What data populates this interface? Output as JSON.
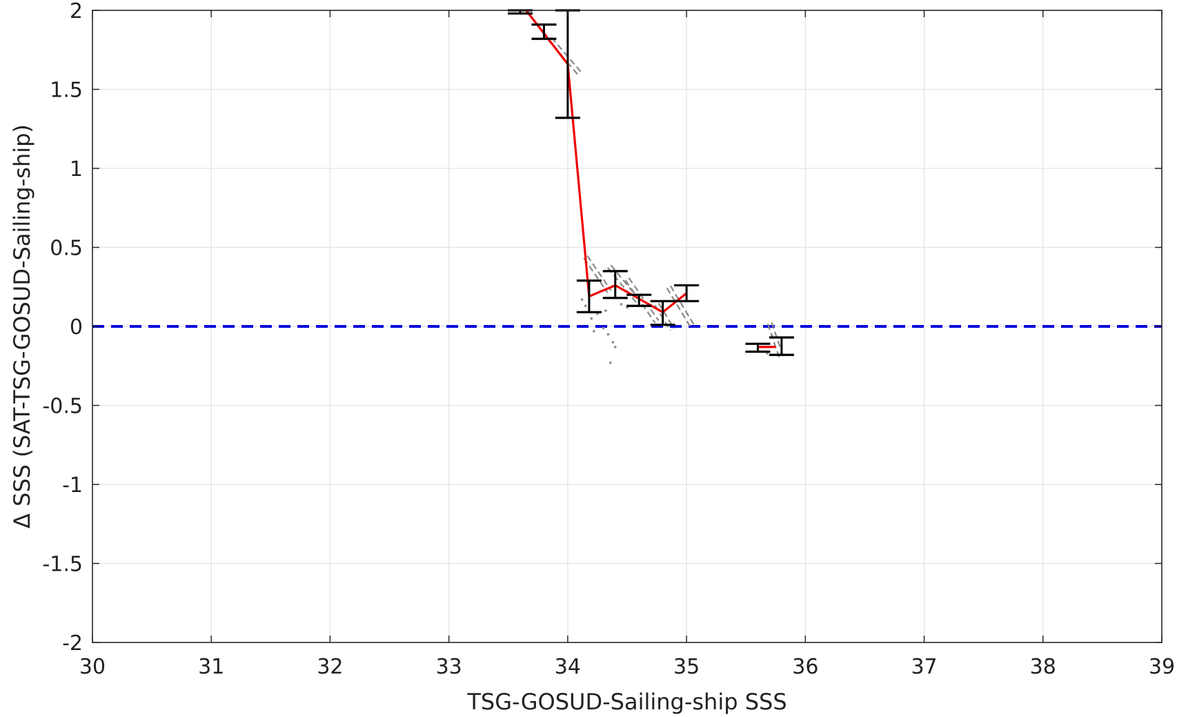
{
  "chart_data": {
    "type": "line",
    "title": "",
    "xlabel": "TSG-GOSUD-Sailing-ship SSS",
    "ylabel": "Δ SSS (SAT-TSG-GOSUD-Sailing-ship)",
    "xlim": [
      30,
      39
    ],
    "ylim": [
      -2,
      2
    ],
    "xticks": [
      "30",
      "31",
      "32",
      "33",
      "34",
      "35",
      "36",
      "37",
      "38",
      "39"
    ],
    "yticks": [
      "-2",
      "-1.5",
      "-1",
      "-0.5",
      "0",
      "0.5",
      "1",
      "1.5",
      "2"
    ],
    "grid": true,
    "reference_line": {
      "y": 0,
      "style": "dashed",
      "color": "#0000dd"
    },
    "series": [
      {
        "type": "line",
        "color": "#ee0000",
        "x": [
          33.65,
          34.0,
          34.18,
          34.4,
          34.8,
          35.0
        ],
        "y": [
          2.0,
          1.66,
          0.19,
          0.26,
          0.09,
          0.21
        ]
      },
      {
        "type": "line",
        "color": "#ee0000",
        "x": [
          35.6,
          35.75
        ],
        "y": [
          -0.13,
          -0.13
        ]
      }
    ],
    "error_bars": {
      "color": "#000000",
      "items": [
        {
          "x": 33.6,
          "low": 1.98,
          "high": 2.0
        },
        {
          "x": 33.8,
          "low": 1.82,
          "high": 1.91
        },
        {
          "x": 34.0,
          "low": 1.32,
          "high": 2.0
        },
        {
          "x": 34.18,
          "low": 0.09,
          "high": 0.29
        },
        {
          "x": 34.4,
          "low": 0.18,
          "high": 0.35
        },
        {
          "x": 34.6,
          "low": 0.13,
          "high": 0.2
        },
        {
          "x": 34.8,
          "low": 0.01,
          "high": 0.16
        },
        {
          "x": 35.0,
          "low": 0.16,
          "high": 0.26
        },
        {
          "x": 35.6,
          "low": -0.16,
          "high": -0.11
        },
        {
          "x": 35.8,
          "low": -0.18,
          "high": -0.07
        }
      ]
    },
    "gray_regression_segments": {
      "color": "#888888",
      "items": [
        {
          "x1": 33.85,
          "y1": 1.82,
          "x2": 34.1,
          "y2": 1.6
        },
        {
          "x1": 34.15,
          "y1": 0.44,
          "x2": 34.35,
          "y2": 0.22
        },
        {
          "x1": 34.35,
          "y1": 0.38,
          "x2": 34.6,
          "y2": 0.15
        },
        {
          "x1": 34.5,
          "y1": 0.3,
          "x2": 34.75,
          "y2": 0.03
        },
        {
          "x1": 34.75,
          "y1": 0.14,
          "x2": 34.88,
          "y2": -0.02
        },
        {
          "x1": 34.85,
          "y1": 0.25,
          "x2": 35.05,
          "y2": 0.0
        },
        {
          "x1": 35.7,
          "y1": 0.02,
          "x2": 35.8,
          "y2": -0.2
        }
      ]
    },
    "gray_scatter_points": {
      "color": "#888888",
      "x": [
        34.12,
        34.15,
        34.2,
        34.22,
        34.25,
        34.3,
        34.32,
        34.34,
        34.36,
        34.38,
        34.4,
        34.45,
        34.5,
        35.72,
        35.68
      ],
      "y": [
        0.17,
        0.13,
        0.05,
        -0.03,
        0.08,
        -0.01,
        0.1,
        -0.05,
        -0.23,
        -0.1,
        -0.13,
        0.14,
        0.12,
        -0.06,
        -0.17
      ]
    }
  }
}
